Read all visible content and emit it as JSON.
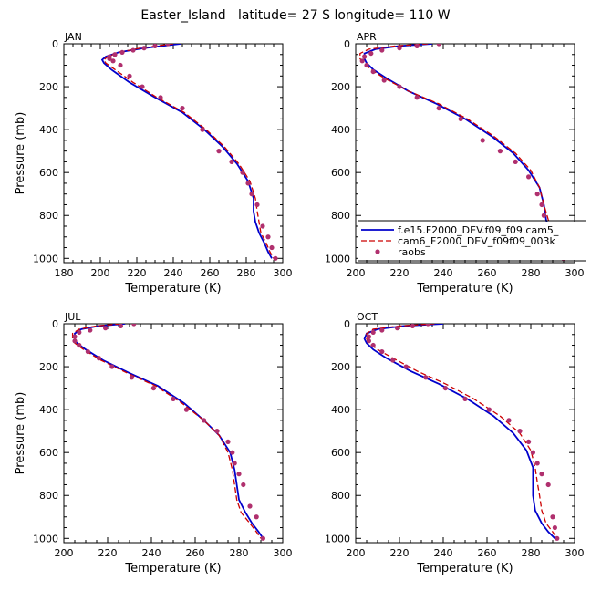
{
  "figure_title": "Easter_Island   latitude= 27 S longitude= 110 W",
  "colors": {
    "model1": "#0000cc",
    "model2": "#cc0000",
    "obs": "#b0306e"
  },
  "chart_data": [
    {
      "type": "line",
      "panel": "JAN",
      "xlabel": "Temperature (K)",
      "ylabel": "Pressure (mb)",
      "xlim": [
        180,
        300
      ],
      "ylim": [
        1020,
        0
      ],
      "xticks": [
        180,
        200,
        220,
        240,
        260,
        280,
        300
      ],
      "yticks": [
        0,
        200,
        400,
        600,
        800,
        1000
      ],
      "series": [
        {
          "key": "model1",
          "style": "solid",
          "x": [
            244,
            224,
            210,
            203,
            201,
            202,
            206,
            216,
            230,
            245,
            257,
            267,
            275,
            281,
            284,
            284,
            285,
            287,
            290,
            292,
            294
          ],
          "y": [
            0,
            20,
            40,
            60,
            75,
            90,
            120,
            180,
            250,
            320,
            400,
            480,
            560,
            640,
            720,
            780,
            830,
            880,
            930,
            970,
            1000
          ]
        },
        {
          "key": "model2",
          "style": "dashed",
          "x": [
            240,
            222,
            210,
            204,
            202,
            203,
            208,
            218,
            231,
            246,
            258,
            268,
            276,
            282,
            285,
            286,
            287,
            288,
            291,
            293,
            295
          ],
          "y": [
            0,
            20,
            40,
            60,
            75,
            90,
            120,
            180,
            250,
            320,
            400,
            480,
            560,
            640,
            720,
            780,
            830,
            880,
            930,
            970,
            1000
          ]
        },
        {
          "key": "obs",
          "style": "points",
          "x": [
            237,
            230,
            224,
            218,
            212,
            208,
            205,
            205,
            207,
            211,
            216,
            223,
            233,
            245,
            256,
            265,
            272,
            278,
            281,
            283,
            286,
            289,
            292,
            294,
            296
          ],
          "y": [
            0,
            10,
            20,
            30,
            40,
            50,
            60,
            70,
            80,
            100,
            150,
            200,
            250,
            300,
            400,
            500,
            550,
            600,
            650,
            700,
            750,
            850,
            900,
            950,
            1000
          ]
        }
      ]
    },
    {
      "type": "line",
      "panel": "APR",
      "xlabel": "Temperature (K)",
      "ylabel": "",
      "xlim": [
        200,
        300
      ],
      "ylim": [
        1020,
        0
      ],
      "xticks": [
        200,
        220,
        240,
        260,
        280,
        300
      ],
      "yticks": [
        0,
        200,
        400,
        600,
        800,
        1000
      ],
      "legend": {
        "placement": "lower-right",
        "entries": [
          {
            "key": "model1",
            "label": "f.e15.F2000_DEV.f09_f09.cam5_"
          },
          {
            "key": "model2",
            "label": "cam6_F2000_DEV_f09f09_003k"
          },
          {
            "key": "obs",
            "label": "raobs"
          }
        ]
      },
      "series": [
        {
          "key": "model1",
          "style": "solid",
          "x": [
            235,
            220,
            209,
            204,
            204,
            205,
            208,
            214,
            224,
            237,
            250,
            262,
            272,
            279,
            284,
            286,
            287,
            289,
            291,
            293,
            295
          ],
          "y": [
            0,
            10,
            25,
            45,
            70,
            90,
            120,
            160,
            220,
            280,
            350,
            430,
            510,
            590,
            670,
            750,
            820,
            880,
            930,
            970,
            1000
          ]
        },
        {
          "key": "model2",
          "style": "dashed",
          "x": [
            233,
            218,
            206,
            202,
            202,
            204,
            207,
            213,
            224,
            238,
            251,
            263,
            273,
            280,
            284,
            286,
            288,
            290,
            292,
            294,
            296
          ],
          "y": [
            0,
            10,
            25,
            45,
            70,
            90,
            120,
            160,
            220,
            280,
            350,
            430,
            510,
            590,
            670,
            750,
            820,
            880,
            930,
            970,
            1000
          ]
        },
        {
          "key": "obs",
          "style": "points",
          "x": [
            238,
            228,
            220,
            212,
            207,
            204,
            203,
            205,
            208,
            213,
            220,
            228,
            238,
            248,
            258,
            266,
            273,
            279,
            283,
            285,
            286,
            288,
            291,
            293,
            295
          ],
          "y": [
            0,
            10,
            20,
            30,
            45,
            60,
            80,
            100,
            130,
            170,
            200,
            250,
            300,
            350,
            450,
            500,
            550,
            620,
            700,
            750,
            800,
            850,
            900,
            950,
            1000
          ]
        }
      ]
    },
    {
      "type": "line",
      "panel": "JUL",
      "xlabel": "Temperature (K)",
      "ylabel": "Pressure (mb)",
      "xlim": [
        200,
        300
      ],
      "ylim": [
        1020,
        0
      ],
      "xticks": [
        200,
        220,
        240,
        260,
        280,
        300
      ],
      "yticks": [
        0,
        200,
        400,
        600,
        800,
        1000
      ],
      "series": [
        {
          "key": "model1",
          "style": "solid",
          "x": [
            228,
            216,
            208,
            205,
            205,
            206,
            210,
            218,
            230,
            243,
            255,
            264,
            271,
            276,
            278,
            279,
            280,
            283,
            286,
            289,
            291
          ],
          "y": [
            0,
            10,
            25,
            45,
            70,
            90,
            120,
            170,
            230,
            290,
            370,
            450,
            520,
            600,
            680,
            750,
            820,
            880,
            930,
            970,
            1000
          ]
        },
        {
          "key": "model2",
          "style": "dashed",
          "x": [
            226,
            215,
            207,
            204,
            204,
            205,
            209,
            217,
            229,
            242,
            254,
            264,
            271,
            275,
            277,
            278,
            279,
            281,
            285,
            288,
            290
          ],
          "y": [
            0,
            10,
            25,
            45,
            70,
            90,
            120,
            170,
            230,
            290,
            370,
            450,
            520,
            600,
            680,
            750,
            820,
            880,
            930,
            970,
            1000
          ]
        },
        {
          "key": "obs",
          "style": "points",
          "x": [
            232,
            226,
            219,
            212,
            207,
            205,
            205,
            207,
            211,
            216,
            222,
            231,
            241,
            250,
            256,
            264,
            270,
            275,
            277,
            278,
            280,
            282,
            285,
            288,
            291
          ],
          "y": [
            0,
            10,
            20,
            30,
            40,
            60,
            80,
            100,
            130,
            160,
            200,
            250,
            300,
            350,
            400,
            450,
            500,
            550,
            600,
            650,
            700,
            750,
            850,
            900,
            1000
          ]
        }
      ]
    },
    {
      "type": "line",
      "panel": "OCT",
      "xlabel": "Temperature (K)",
      "ylabel": "",
      "xlim": [
        200,
        300
      ],
      "ylim": [
        1020,
        0
      ],
      "xticks": [
        200,
        220,
        240,
        260,
        280,
        300
      ],
      "yticks": [
        0,
        200,
        400,
        600,
        800,
        1000
      ],
      "series": [
        {
          "key": "model1",
          "style": "solid",
          "x": [
            240,
            222,
            210,
            205,
            204,
            205,
            208,
            214,
            225,
            238,
            251,
            263,
            272,
            278,
            281,
            281,
            281,
            282,
            285,
            288,
            291
          ],
          "y": [
            0,
            10,
            25,
            45,
            70,
            90,
            120,
            160,
            220,
            280,
            350,
            430,
            510,
            590,
            670,
            740,
            800,
            870,
            930,
            970,
            1000
          ]
        },
        {
          "key": "model2",
          "style": "dashed",
          "x": [
            236,
            220,
            208,
            205,
            205,
            206,
            210,
            217,
            228,
            241,
            254,
            266,
            275,
            280,
            282,
            283,
            284,
            285,
            287,
            290,
            292
          ],
          "y": [
            0,
            10,
            25,
            45,
            70,
            90,
            120,
            160,
            220,
            280,
            350,
            430,
            510,
            590,
            670,
            740,
            800,
            870,
            930,
            970,
            1000
          ]
        },
        {
          "key": "obs",
          "style": "points",
          "x": [
            233,
            226,
            219,
            212,
            208,
            206,
            206,
            208,
            212,
            217,
            223,
            232,
            241,
            250,
            261,
            270,
            275,
            279,
            281,
            283,
            285,
            288,
            290,
            291,
            292
          ],
          "y": [
            0,
            10,
            20,
            30,
            40,
            60,
            80,
            100,
            130,
            170,
            200,
            250,
            300,
            350,
            400,
            450,
            500,
            550,
            600,
            650,
            700,
            750,
            900,
            950,
            1000
          ]
        }
      ]
    }
  ]
}
